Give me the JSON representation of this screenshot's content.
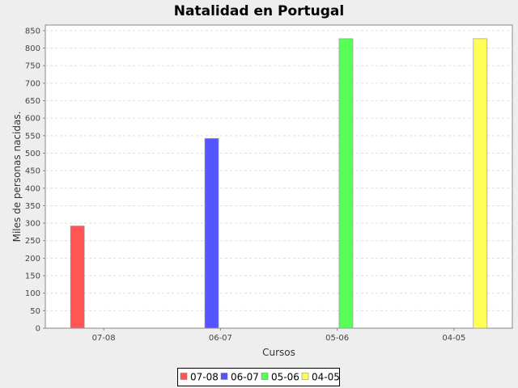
{
  "chart_data": {
    "type": "bar",
    "title": "Natalidad en Portugal",
    "xlabel": "Cursos",
    "ylabel": "Miles de personas nacidas.",
    "categories": [
      "07-08",
      "06-07",
      "05-06",
      "04-05"
    ],
    "series": [
      {
        "name": "07-08",
        "color": "#ff5555",
        "values": [
          292,
          0,
          0,
          0
        ]
      },
      {
        "name": "06-07",
        "color": "#5555ff",
        "values": [
          0,
          542,
          0,
          0
        ]
      },
      {
        "name": "05-06",
        "color": "#55ff55",
        "values": [
          0,
          0,
          827,
          0
        ]
      },
      {
        "name": "04-05",
        "color": "#ffff55",
        "values": [
          0,
          0,
          0,
          827
        ]
      }
    ],
    "ylim": [
      0,
      866
    ],
    "yticks": [
      0,
      50,
      100,
      150,
      200,
      250,
      300,
      350,
      400,
      450,
      500,
      550,
      600,
      650,
      700,
      750,
      800,
      850
    ],
    "grid": true,
    "legend_placement": "bottom"
  }
}
